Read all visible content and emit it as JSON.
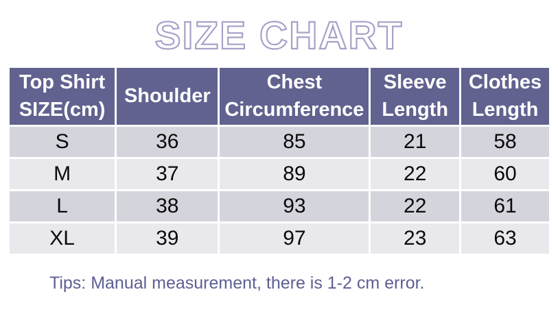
{
  "page": {
    "title": "SIZE CHART",
    "tips": "Tips: Manual measurement, there is 1-2 cm error."
  },
  "colors": {
    "header_bg": "#61628f",
    "header_text": "#ffffff",
    "row_odd_bg": "#d4d4dc",
    "row_even_bg": "#e9e9ed",
    "cell_text": "#0a0a0a",
    "title_outline": "#a6a2c8",
    "tips_text": "#5d5f92"
  },
  "table": {
    "headers": [
      "Top Shirt SIZE(cm)",
      "Shoulder",
      "Chest Circumference",
      "Sleeve Length",
      "Clothes Length"
    ],
    "rows": [
      [
        "S",
        "36",
        "85",
        "21",
        "58"
      ],
      [
        "M",
        "37",
        "89",
        "22",
        "60"
      ],
      [
        "L",
        "38",
        "93",
        "22",
        "61"
      ],
      [
        "XL",
        "39",
        "97",
        "23",
        "63"
      ]
    ]
  },
  "chart_data": {
    "type": "table",
    "title": "SIZE CHART",
    "columns": [
      "Top Shirt SIZE(cm)",
      "Shoulder",
      "Chest Circumference",
      "Sleeve Length",
      "Clothes Length"
    ],
    "units": "cm",
    "rows": [
      {
        "size": "S",
        "shoulder": 36,
        "chest_circumference": 85,
        "sleeve_length": 21,
        "clothes_length": 58
      },
      {
        "size": "M",
        "shoulder": 37,
        "chest_circumference": 89,
        "sleeve_length": 22,
        "clothes_length": 60
      },
      {
        "size": "L",
        "shoulder": 38,
        "chest_circumference": 93,
        "sleeve_length": 22,
        "clothes_length": 61
      },
      {
        "size": "XL",
        "shoulder": 39,
        "chest_circumference": 97,
        "sleeve_length": 23,
        "clothes_length": 63
      }
    ],
    "note": "Tips: Manual measurement, there is 1-2 cm error."
  }
}
